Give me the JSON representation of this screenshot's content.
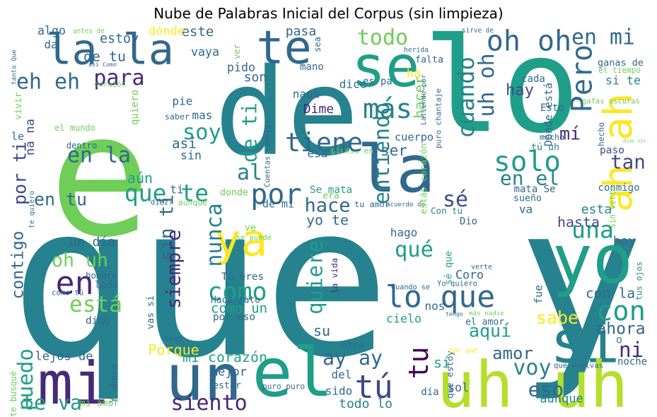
{
  "title": "Nube de Palabras Inicial del Corpus (sin limpieza)",
  "palette": {
    "c1": "#440154",
    "c2": "#482878",
    "c3": "#3e4989",
    "c4": "#31688e",
    "c5": "#26828e",
    "c6": "#1f9e89",
    "c7": "#35b779",
    "c8": "#6ece58",
    "c9": "#b5de2b",
    "c10": "#fde725"
  },
  "words": [
    {
      "id": "que-y",
      "text": "que y",
      "color": "c5"
    },
    {
      "id": "de",
      "text": "de",
      "color": "c5"
    },
    {
      "id": "e",
      "text": "e",
      "color": "c8"
    },
    {
      "id": "lo",
      "text": "lo",
      "color": "c6"
    },
    {
      "id": "la-la",
      "text": "la la",
      "color": "c4"
    },
    {
      "id": "te",
      "text": "te",
      "color": "c4"
    },
    {
      "id": "se",
      "text": "se",
      "color": "c6"
    },
    {
      "id": "la",
      "text": "la",
      "color": "c4"
    },
    {
      "id": "ah-ah",
      "text": "ah ah",
      "color": "c10"
    },
    {
      "id": "yo",
      "text": "yo",
      "color": "c6"
    },
    {
      "id": "si",
      "text": "si",
      "color": "c5"
    },
    {
      "id": "uh-uh",
      "text": "uh uh",
      "color": "c9"
    },
    {
      "id": "un",
      "text": "un",
      "color": "c4"
    },
    {
      "id": "el",
      "text": "el",
      "color": "c6"
    },
    {
      "id": "mi",
      "text": "mi",
      "color": "c2"
    },
    {
      "id": "ya",
      "text": "ya",
      "color": "c10"
    },
    {
      "id": "lo-que",
      "text": "lo que",
      "color": "c4"
    },
    {
      "id": "todo",
      "text": "todo",
      "color": "c8"
    },
    {
      "id": "oh-oh",
      "text": "oh oh",
      "color": "c4"
    },
    {
      "id": "en-mi",
      "text": "en mi",
      "color": "c4"
    },
    {
      "id": "pero",
      "text": "Pero",
      "color": "c4"
    },
    {
      "id": "si-te",
      "text": "si te",
      "color": "c5"
    },
    {
      "id": "ganas-de",
      "text": "ganas de",
      "color": "c4"
    },
    {
      "id": "el-tiempo",
      "text": "el tiempo",
      "color": "c8"
    },
    {
      "id": "mas",
      "text": "más",
      "color": "c5"
    },
    {
      "id": "uh-oh",
      "text": "uh oh",
      "color": "c4"
    },
    {
      "id": "cuando",
      "text": "cuando",
      "color": "c5"
    },
    {
      "id": "hay",
      "text": "hay",
      "color": "c3"
    },
    {
      "id": "cada",
      "text": "cada",
      "color": "c4"
    },
    {
      "id": "donde-esta",
      "text": "Dónde está",
      "color": "c4"
    },
    {
      "id": "esto",
      "text": "Esto",
      "color": "c4"
    },
    {
      "id": "gafas-oscuras",
      "text": "gafas oscuras",
      "color": "c8"
    },
    {
      "id": "mi-2",
      "text": "mí",
      "color": "c2"
    },
    {
      "id": "mucho",
      "text": "mucho",
      "color": "c4"
    },
    {
      "id": "tu-uh",
      "text": "tú uh",
      "color": "c5"
    },
    {
      "id": "hecho",
      "text": "hecho",
      "color": "c4"
    },
    {
      "id": "paso",
      "text": "paso",
      "color": "c3"
    },
    {
      "id": "dias-sin",
      "text": "días sin",
      "color": "c8"
    },
    {
      "id": "solo",
      "text": "solo",
      "color": "c6"
    },
    {
      "id": "tan",
      "text": "tan",
      "color": "c3"
    },
    {
      "id": "en-el",
      "text": "en el",
      "color": "c5"
    },
    {
      "id": "se-2",
      "text": "sé",
      "color": "c3"
    },
    {
      "id": "una",
      "text": "una",
      "color": "c6"
    },
    {
      "id": "conmigo",
      "text": "conmigo",
      "color": "c4"
    },
    {
      "id": "sin-verte",
      "text": "sin verte",
      "color": "c8"
    },
    {
      "id": "mata-se",
      "text": "mata Se",
      "color": "c4"
    },
    {
      "id": "sueno",
      "text": "sueño",
      "color": "c4"
    },
    {
      "id": "va",
      "text": "va",
      "color": "c4"
    },
    {
      "id": "esta-2",
      "text": "esta",
      "color": "c5"
    },
    {
      "id": "hasta",
      "text": "hasta",
      "color": "c3"
    },
    {
      "id": "hoy",
      "text": "hoy",
      "color": "c4"
    },
    {
      "id": "que-2",
      "text": "qué",
      "color": "c6"
    },
    {
      "id": "con",
      "text": "con",
      "color": "c6"
    },
    {
      "id": "con-la",
      "text": "con la",
      "color": "c4"
    },
    {
      "id": "tus-ojos",
      "text": "tus ojos",
      "color": "c5"
    },
    {
      "id": "fue",
      "text": "fue",
      "color": "c4"
    },
    {
      "id": "sabe",
      "text": "sabe",
      "color": "c10"
    },
    {
      "id": "ahora",
      "text": "ahora",
      "color": "c4"
    },
    {
      "id": "ni",
      "text": "ni",
      "color": "c2"
    },
    {
      "id": "o",
      "text": "o",
      "color": "c5"
    },
    {
      "id": "noche",
      "text": "noche",
      "color": "c4"
    },
    {
      "id": "que-vuelvas",
      "text": "que vuelvas",
      "color": "c4"
    },
    {
      "id": "aunque",
      "text": "aunque",
      "color": "c5"
    },
    {
      "id": "voy",
      "text": "voy",
      "color": "c5"
    },
    {
      "id": "amor",
      "text": "amor",
      "color": "c4"
    },
    {
      "id": "eso",
      "text": "eso",
      "color": "c4"
    },
    {
      "id": "aqui",
      "text": "aquí",
      "color": "c6"
    },
    {
      "id": "ay-ay",
      "text": "ay ay",
      "color": "c4"
    },
    {
      "id": "tu-2",
      "text": "tu",
      "color": "c1"
    },
    {
      "id": "tu-3",
      "text": "tú",
      "color": "c3"
    },
    {
      "id": "si-2",
      "text": "sí",
      "color": "c6"
    },
    {
      "id": "que-estoy",
      "text": "que estoy",
      "color": "c4"
    },
    {
      "id": "por-que",
      "text": "por qué",
      "color": "c10"
    },
    {
      "id": "sol",
      "text": "sol",
      "color": "c4"
    },
    {
      "id": "dia",
      "text": "día",
      "color": "c4"
    },
    {
      "id": "sido",
      "text": "sido",
      "color": "c4"
    },
    {
      "id": "del",
      "text": "del",
      "color": "c4"
    },
    {
      "id": "otro",
      "text": "otro",
      "color": "c4"
    },
    {
      "id": "todo-lo",
      "text": "todo lo",
      "color": "c5"
    },
    {
      "id": "puro-puro",
      "text": "puro puro",
      "color": "c4"
    },
    {
      "id": "su",
      "text": "su",
      "color": "c4"
    },
    {
      "id": "el-amor",
      "text": "el amor",
      "color": "c4"
    },
    {
      "id": "mas-nadie",
      "text": "más nadie",
      "color": "c8"
    },
    {
      "id": "tengo",
      "text": "tengo",
      "color": "c4"
    },
    {
      "id": "nos",
      "text": "nos",
      "color": "c4"
    },
    {
      "id": "cielo",
      "text": "cielo",
      "color": "c6"
    },
    {
      "id": "cuando-se",
      "text": "Cuando se",
      "color": "c4"
    },
    {
      "id": "yo-quiero",
      "text": "Yo quiero",
      "color": "c4"
    },
    {
      "id": "coro",
      "text": "Coro",
      "color": "c4"
    },
    {
      "id": "verte",
      "text": "verte",
      "color": "c4"
    },
    {
      "id": "se-que",
      "text": "sé que",
      "color": "c6"
    },
    {
      "id": "hago",
      "text": "hago",
      "color": "c4"
    },
    {
      "id": "dio",
      "text": "Dio",
      "color": "c4"
    },
    {
      "id": "con-tu",
      "text": "Con tu",
      "color": "c5"
    },
    {
      "id": "tu-amor",
      "text": "tu amor",
      "color": "c4"
    },
    {
      "id": "acuerdo-de",
      "text": "acuerdo de",
      "color": "c4"
    },
    {
      "id": "estas-corazon",
      "text": "estás corazón",
      "color": "c8"
    },
    {
      "id": "pienso-en",
      "text": "pienso en",
      "color": "c8"
    },
    {
      "id": "era",
      "text": "era",
      "color": "c8"
    },
    {
      "id": "se-mata",
      "text": "Se mata",
      "color": "c6"
    },
    {
      "id": "hace",
      "text": "hace",
      "color": "c4"
    },
    {
      "id": "yo-te",
      "text": "yo te",
      "color": "c4"
    },
    {
      "id": "la-vida",
      "text": "la vida",
      "color": "c2"
    },
    {
      "id": "quiere",
      "text": "quiere",
      "color": "c6"
    },
    {
      "id": "entiendo",
      "text": "entiendo",
      "color": "c5"
    },
    {
      "id": "tiene",
      "text": "tiene",
      "color": "c4"
    },
    {
      "id": "ser",
      "text": "ser",
      "color": "c4"
    },
    {
      "id": "esa",
      "text": "esa",
      "color": "c4"
    },
    {
      "id": "cuerpo",
      "text": "cuerpo",
      "color": "c4"
    },
    {
      "id": "hacer",
      "text": "hacer",
      "color": "c8"
    },
    {
      "id": "ha",
      "text": "ha",
      "color": "c10"
    },
    {
      "id": "latiendo-por",
      "text": "Latiendo por",
      "color": "c4"
    },
    {
      "id": "puro-chantaje",
      "text": "puro chantaje",
      "color": "c4"
    },
    {
      "id": "herida",
      "text": "herida",
      "color": "c4"
    },
    {
      "id": "falta",
      "text": "falta",
      "color": "c4"
    },
    {
      "id": "sirve-de",
      "text": "sirve de",
      "color": "c4"
    },
    {
      "id": "pasa",
      "text": "pasa",
      "color": "c4"
    },
    {
      "id": "sea",
      "text": "sea",
      "color": "c4"
    },
    {
      "id": "mano",
      "text": "mano",
      "color": "c4"
    },
    {
      "id": "dice",
      "text": "dice",
      "color": "c4"
    },
    {
      "id": "es-pa",
      "text": "es pa'",
      "color": "c4"
    },
    {
      "id": "nada",
      "text": "nada",
      "color": "c4"
    },
    {
      "id": "dime",
      "text": "Dime",
      "color": "c2"
    },
    {
      "id": "son",
      "text": "son",
      "color": "c4"
    },
    {
      "id": "pido",
      "text": "pido",
      "color": "c4"
    },
    {
      "id": "ver",
      "text": "ver",
      "color": "c8"
    },
    {
      "id": "este",
      "text": "este",
      "color": "c4"
    },
    {
      "id": "vaya",
      "text": "vaya",
      "color": "c4"
    },
    {
      "id": "donde-2",
      "text": "dónde",
      "color": "c10"
    },
    {
      "id": "estoy",
      "text": "estoy",
      "color": "c4"
    },
    {
      "id": "de-tu",
      "text": "de tu",
      "color": "c4"
    },
    {
      "id": "para",
      "text": "para",
      "color": "c2"
    },
    {
      "id": "antes-de",
      "text": "antes de",
      "color": "c8"
    },
    {
      "id": "algo",
      "text": "algo",
      "color": "c4"
    },
    {
      "id": "da",
      "text": "da",
      "color": "c4"
    },
    {
      "id": "tanto-que",
      "text": "tanto Que",
      "color": "c4"
    },
    {
      "id": "asi-como",
      "text": "así Como",
      "color": "c4"
    },
    {
      "id": "corazon-2",
      "text": "corazón",
      "color": "c8"
    },
    {
      "id": "eh-eh",
      "text": "eh eh",
      "color": "c4"
    },
    {
      "id": "vivir",
      "text": "vivir",
      "color": "c8"
    },
    {
      "id": "na-na",
      "text": "na na",
      "color": "c3"
    },
    {
      "id": "quiero",
      "text": "quiero",
      "color": "c8"
    },
    {
      "id": "saber",
      "text": "saber",
      "color": "c4"
    },
    {
      "id": "mas-2",
      "text": "mas",
      "color": "c4"
    },
    {
      "id": "pie",
      "text": "pie",
      "color": "c4"
    },
    {
      "id": "el-mundo",
      "text": "el mundo",
      "color": "c8"
    },
    {
      "id": "le",
      "text": "le",
      "color": "c4"
    },
    {
      "id": "dentro",
      "text": "dentro",
      "color": "c4"
    },
    {
      "id": "soy",
      "text": "soy",
      "color": "c6"
    },
    {
      "id": "asi-2",
      "text": "así",
      "color": "c4"
    },
    {
      "id": "de-ti",
      "text": "de ti",
      "color": "c6"
    },
    {
      "id": "cuentas-conmigo",
      "text": "Cuentas conmigo",
      "color": "c4"
    },
    {
      "id": "sin",
      "text": "sin",
      "color": "c4"
    },
    {
      "id": "en-la",
      "text": "en la",
      "color": "c4"
    },
    {
      "id": "por-ti",
      "text": "por ti",
      "color": "c3"
    },
    {
      "id": "al",
      "text": "al",
      "color": "c5"
    },
    {
      "id": "aun",
      "text": "aún",
      "color": "c6"
    },
    {
      "id": "que-te",
      "text": "que te",
      "color": "c6"
    },
    {
      "id": "por",
      "text": "por",
      "color": "c4"
    },
    {
      "id": "ti",
      "text": "ti",
      "color": "c4"
    },
    {
      "id": "donde-3",
      "text": "donde",
      "color": "c8"
    },
    {
      "id": "en-tu",
      "text": "en tu",
      "color": "c4"
    },
    {
      "id": "te-quiero",
      "text": "te quiero",
      "color": "c4"
    },
    {
      "id": "diez",
      "text": "diez",
      "color": "c4"
    },
    {
      "id": "y-aunque",
      "text": "Y aunque",
      "color": "c8"
    },
    {
      "id": "de-mi",
      "text": "de mí",
      "color": "c4"
    },
    {
      "id": "nunca",
      "text": "nunca",
      "color": "c5"
    },
    {
      "id": "sin-ti",
      "text": "sin ti",
      "color": "c4"
    },
    {
      "id": "siempre",
      "text": "siempre",
      "color": "c2"
    },
    {
      "id": "ve",
      "text": "ve",
      "color": "c8"
    },
    {
      "id": "se-puede",
      "text": "se puede",
      "color": "c8"
    },
    {
      "id": "un-dia",
      "text": "un día",
      "color": "c4"
    },
    {
      "id": "contigo",
      "text": "contigo",
      "color": "c4"
    },
    {
      "id": "oh-uh",
      "text": "oh uh",
      "color": "c8"
    },
    {
      "id": "en",
      "text": "en",
      "color": "c2"
    },
    {
      "id": "hombre",
      "text": "hombre",
      "color": "c4"
    },
    {
      "id": "lado",
      "text": "lado",
      "color": "c4"
    },
    {
      "id": "como-tu",
      "text": "como tú",
      "color": "c4"
    },
    {
      "id": "esta-3",
      "text": "está",
      "color": "c8"
    },
    {
      "id": "como",
      "text": "como",
      "color": "c6"
    },
    {
      "id": "tu-eres",
      "text": "Tú eres",
      "color": "c4"
    },
    {
      "id": "vas-si",
      "text": "vas si",
      "color": "c4"
    },
    {
      "id": "hace-rato",
      "text": "Hace rato",
      "color": "c4"
    },
    {
      "id": "como-un",
      "text": "como un",
      "color": "c6"
    },
    {
      "id": "por-eso",
      "text": "por eso",
      "color": "c4"
    },
    {
      "id": "digo",
      "text": "digo",
      "color": "c4"
    },
    {
      "id": "beso",
      "text": "beso",
      "color": "c4"
    },
    {
      "id": "porque",
      "text": "Porque",
      "color": "c10"
    },
    {
      "id": "mi-corazon",
      "text": "mi corazón",
      "color": "c6"
    },
    {
      "id": "mejor",
      "text": "mejor",
      "color": "c4"
    },
    {
      "id": "estar",
      "text": "estar",
      "color": "c4"
    },
    {
      "id": "lejos-de",
      "text": "lejos de",
      "color": "c4"
    },
    {
      "id": "y-ahora",
      "text": "Y ahora",
      "color": "c4"
    },
    {
      "id": "puedo",
      "text": "puedo",
      "color": "c6"
    },
    {
      "id": "te-busque",
      "text": "te busqué",
      "color": "c8"
    },
    {
      "id": "mi-amor",
      "text": "mi amor",
      "color": "c8"
    },
    {
      "id": "te-va",
      "text": "te va",
      "color": "c6"
    },
    {
      "id": "siento",
      "text": "siento",
      "color": "c2"
    }
  ]
}
